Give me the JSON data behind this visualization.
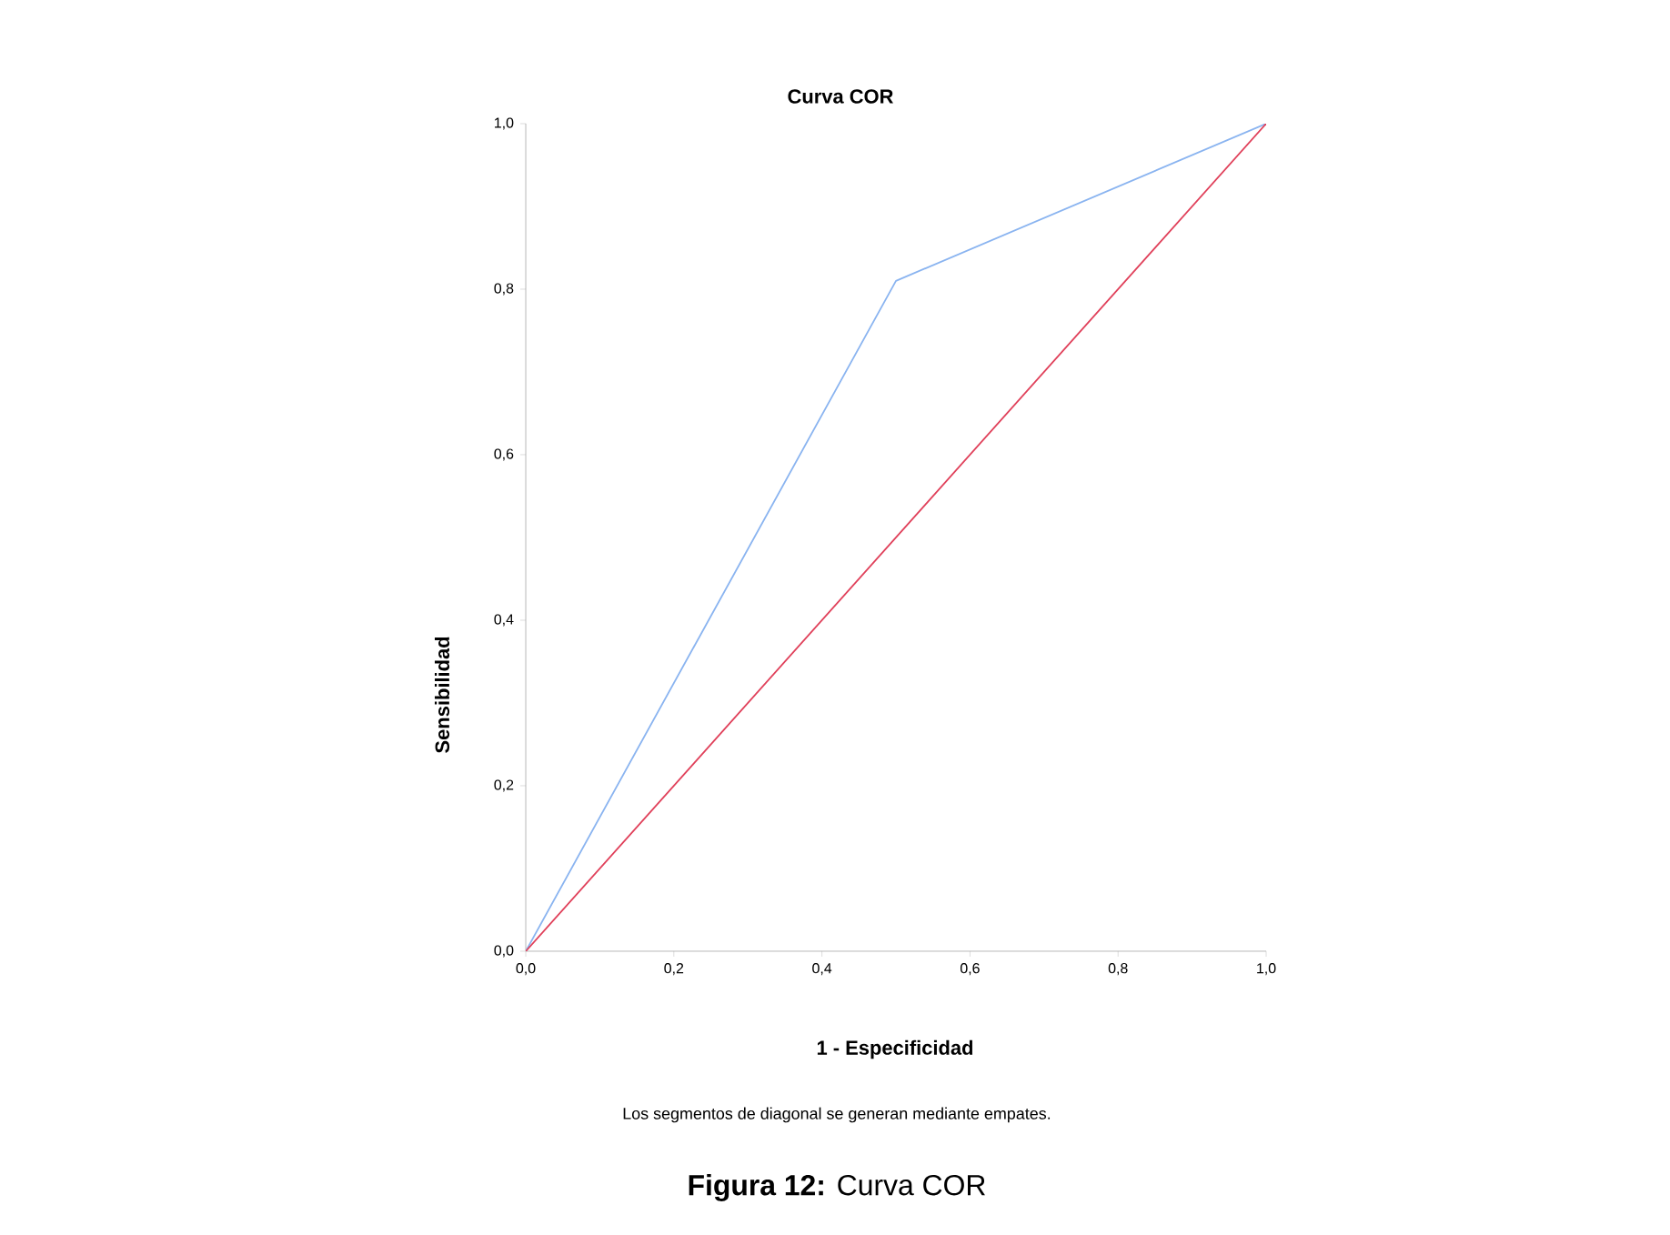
{
  "chart_data": {
    "type": "line",
    "title": "Curva COR",
    "xlabel": "1 - Especificidad",
    "ylabel": "Sensibilidad",
    "annotations": [
      "Los segmentos de diagonal se generan mediante empates.",
      "**Figura 12:** Curva COR"
    ],
    "series": [
      {
        "x": [
          0,
          0.5,
          1
        ],
        "values": [
          0,
          0.81,
          1
        ],
        "color": "#8ab4f0"
      },
      {
        "x": [
          0,
          1
        ],
        "values": [
          0,
          1
        ],
        "color": "#e0405a"
      }
    ],
    "xlim": [
      0,
      1
    ],
    "ylim": [
      0,
      1
    ],
    "xticks": [
      {
        "value": 0,
        "label": "0,0"
      },
      {
        "value": 0.2,
        "label": "0,2"
      },
      {
        "value": 0.4,
        "label": "0,4"
      },
      {
        "value": 0.6,
        "label": "0,6"
      },
      {
        "value": 0.8,
        "label": "0,8"
      },
      {
        "value": 1,
        "label": "1,0"
      }
    ],
    "yticks": [
      {
        "value": 0,
        "label": "0,0"
      },
      {
        "value": 0.2,
        "label": "0,2"
      },
      {
        "value": 0.4,
        "label": "0,4"
      },
      {
        "value": 0.6,
        "label": "0,6"
      },
      {
        "value": 0.8,
        "label": "0,8"
      },
      {
        "value": 1,
        "label": "1,0"
      }
    ],
    "grid": false,
    "marker": "none",
    "line_style": "solid"
  }
}
